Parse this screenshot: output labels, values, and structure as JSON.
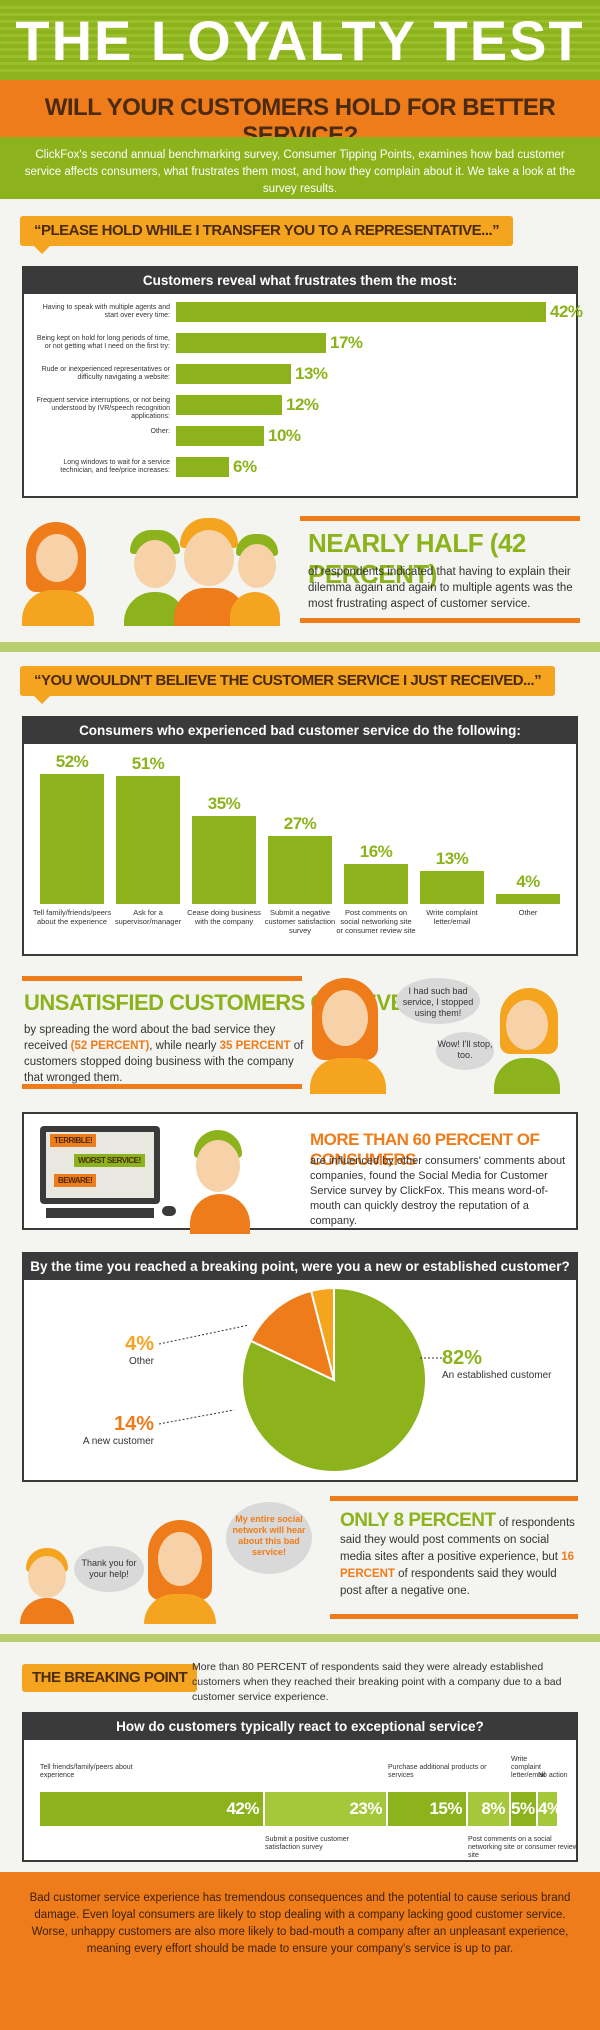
{
  "header": {
    "title": "THE LOYALTY TEST",
    "subtitle": "WILL YOUR CUSTOMERS HOLD FOR BETTER SERVICE?",
    "intro": "ClickFox's second annual benchmarking survey, Consumer Tipping Points, examines how bad customer service affects consumers, what frustrates them most, and how they complain about it. We take a look at the survey results."
  },
  "section1": {
    "banner": "“PLEASE HOLD WHILE I TRANSFER YOU TO A REPRESENTATIVE...”",
    "box_title": "Customers reveal what frustrates them the most:",
    "bars": [
      {
        "label": "Having to speak with multiple agents and start over every time:",
        "value": 42,
        "display": "42%"
      },
      {
        "label": "Being kept on hold for long periods of time, or not getting what I need on the first try:",
        "value": 17,
        "display": "17%"
      },
      {
        "label": "Rude or inexperienced representatives or difficulty navigating a website:",
        "value": 13,
        "display": "13%"
      },
      {
        "label": "Frequent service interruptions, or not being understood by IVR/speech recognition applications:",
        "value": 12,
        "display": "12%"
      },
      {
        "label": "Other:",
        "value": 10,
        "display": "10%"
      },
      {
        "label": "Long windows to wait for a service technician, and fee/price increases:",
        "value": 6,
        "display": "6%"
      }
    ],
    "headline": "NEARLY HALF (42 PERCENT)",
    "body": "of respondents indicated that having to explain their dilemma again and again to multiple agents was the most frustrating aspect of customer service."
  },
  "section2": {
    "banner": "“YOU WOULDN'T BELIEVE THE CUSTOMER SERVICE I JUST RECEIVED...”",
    "box_title": "Consumers who experienced bad customer service do the following:",
    "bars": [
      {
        "label": "Tell family/friends/peers about the experience",
        "value": 52,
        "display": "52%"
      },
      {
        "label": "Ask for a supervisor/manager",
        "value": 51,
        "display": "51%"
      },
      {
        "label": "Cease doing business with the company",
        "value": 35,
        "display": "35%"
      },
      {
        "label": "Submit a negative customer satisfaction survey",
        "value": 27,
        "display": "27%"
      },
      {
        "label": "Post comments on social networking site or consumer review site",
        "value": 16,
        "display": "16%"
      },
      {
        "label": "Write complaint letter/email",
        "value": 13,
        "display": "13%"
      },
      {
        "label": "Other",
        "value": 4,
        "display": "4%"
      }
    ],
    "headline": "UNSATISFIED CUSTOMERS GOT EVEN",
    "body_a": "by spreading the word about the bad service they received",
    "body_hl1": "(52 PERCENT)",
    "body_b": ", while nearly",
    "body_hl2": "35 PERCENT",
    "body_c": "of customers stopped doing business with the company that wronged them.",
    "bubble1": "I had such bad service, I stopped using them!",
    "bubble2": "Wow! I'll stop, too."
  },
  "section3": {
    "screen_lines": [
      "TERRIBLE!",
      "WORST SERVICE!",
      "BEWARE!"
    ],
    "headline": "MORE THAN 60 PERCENT OF CONSUMERS",
    "body": "are influenced by other consumers' comments about companies, found the Social Media for Customer Service survey by ClickFox. This means word-of-mouth can quickly destroy the reputation of a company."
  },
  "section4": {
    "box_title": "By the time you reached a breaking point, were you a new or established customer?",
    "slices": [
      {
        "label": "An established customer",
        "value": 82,
        "display": "82%",
        "color": "#8cb31c"
      },
      {
        "label": "A new customer",
        "value": 14,
        "display": "14%",
        "color": "#ef7c1a"
      },
      {
        "label": "Other",
        "value": 4,
        "display": "4%",
        "color": "#f4a41e"
      }
    ]
  },
  "section5": {
    "bubble_left": "Thank you for your help!",
    "bubble_right": "My entire social network will hear about this bad service!",
    "headline": "ONLY 8 PERCENT",
    "body_a": "of respondents said they would post comments on social media sites after a positive experience, but",
    "body_hl": "16 PERCENT",
    "body_b": "of respondents said they would post after a negative one."
  },
  "breaking": {
    "label": "THE BREAKING POINT",
    "text": "More than 80 PERCENT of respondents said they were already established customers when they reached their breaking point with a company due to a bad customer service experience."
  },
  "section6": {
    "box_title": "How do customers typically react to exceptional service?",
    "segments": [
      {
        "label": "Tell friends/family/peers about experience",
        "value": 42,
        "display": "42%",
        "pos": "top"
      },
      {
        "label": "Submit a positive customer satisfaction survey",
        "value": 23,
        "display": "23%",
        "pos": "bottom"
      },
      {
        "label": "Purchase additional products or services",
        "value": 15,
        "display": "15%",
        "pos": "top"
      },
      {
        "label": "Post comments on a social networking site or consumer review site",
        "value": 8,
        "display": "8%",
        "pos": "bottom"
      },
      {
        "label": "Write complaint letter/email",
        "value": 5,
        "display": "5%",
        "pos": "top"
      },
      {
        "label": "No action",
        "value": 4,
        "display": "4%",
        "pos": "top"
      }
    ]
  },
  "footer": {
    "text": "Bad customer service experience has tremendous consequences and the potential to cause serious brand damage. Even loyal consumers are likely to stop dealing with a company lacking good customer service. Worse, unhappy customers are also more likely to bad-mouth a company after an unpleasant experience, meaning every effort should be made to ensure your company's service is up to par."
  },
  "chart_data": [
    {
      "type": "bar",
      "orientation": "horizontal",
      "title": "Customers reveal what frustrates them the most:",
      "categories": [
        "Having to speak with multiple agents and start over every time:",
        "Being kept on hold for long periods of time, or not getting what I need on the first try:",
        "Rude or inexperienced representatives or difficulty navigating a website:",
        "Frequent service interruptions, or not being understood by IVR/speech recognition applications:",
        "Other:",
        "Long windows to wait for a service technician, and fee/price increases:"
      ],
      "values": [
        42,
        17,
        13,
        12,
        10,
        6
      ]
    },
    {
      "type": "bar",
      "title": "Consumers who experienced bad customer service do the following:",
      "categories": [
        "Tell family/friends/peers about the experience",
        "Ask for a supervisor/manager",
        "Cease doing business with the company",
        "Submit a negative customer satisfaction survey",
        "Post comments on social networking site or consumer review site",
        "Write complaint letter/email",
        "Other"
      ],
      "values": [
        52,
        51,
        35,
        27,
        16,
        13,
        4
      ]
    },
    {
      "type": "pie",
      "title": "By the time you reached a breaking point, were you a new or established customer?",
      "categories": [
        "An established customer",
        "A new customer",
        "Other"
      ],
      "values": [
        82,
        14,
        4
      ]
    },
    {
      "type": "bar",
      "orientation": "stacked-horizontal",
      "title": "How do customers typically react to exceptional service?",
      "categories": [
        "Tell friends/family/peers about experience",
        "Submit a positive customer satisfaction survey",
        "Purchase additional products or services",
        "Post comments on a social networking site or consumer review site",
        "Write complaint letter/email",
        "No action"
      ],
      "values": [
        42,
        23,
        15,
        8,
        5,
        4
      ]
    }
  ]
}
